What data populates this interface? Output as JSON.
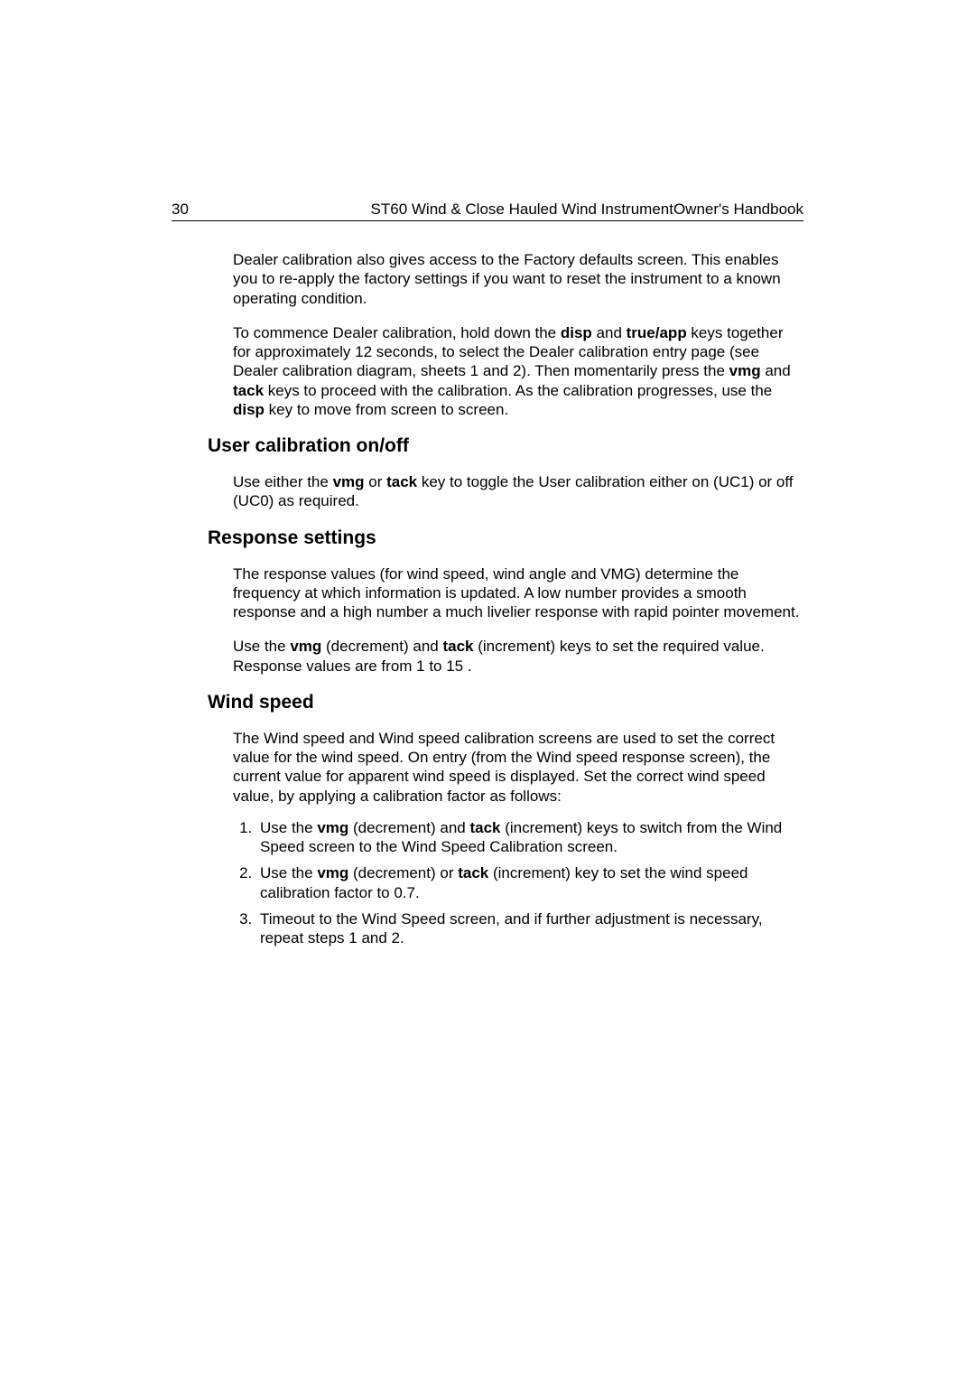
{
  "header": {
    "page_number": "30",
    "title_left": "ST60 Wind & Close Hauled Wind Instrument",
    "title_right": "Owner's Handbook"
  },
  "intro": {
    "p1": "Dealer calibration also gives access to the Factory defaults screen. This enables you to re-apply the factory settings if you want to reset the instrument to a known operating condition.",
    "p2_a": "To commence Dealer calibration, hold down the ",
    "p2_b": "disp",
    "p2_c": " and ",
    "p2_d": "true/app",
    "p2_e": " keys together for approximately 12 seconds, to select the Dealer calibration entry page (see Dealer calibration diagram, sheets 1 and 2). Then momentarily press the ",
    "p2_f": "vmg",
    "p2_g": " and ",
    "p2_h": "tack",
    "p2_i": " keys to proceed with the calibration. As the calibration progresses, use the ",
    "p2_j": "disp",
    "p2_k": " key to move from screen to screen."
  },
  "user_cal": {
    "heading": "User calibration on/off",
    "p_a": "Use either the ",
    "p_b": "vmg",
    "p_c": " or ",
    "p_d": "tack",
    "p_e": " key to toggle the User calibration either on (UC1) or off (UC0) as required."
  },
  "response": {
    "heading": "Response settings",
    "p1": "The response values (for wind speed, wind angle and VMG) determine the frequency at which information is updated. A low number provides a smooth response and a high number a much livelier response with rapid pointer movement.",
    "p2_a": "Use the ",
    "p2_b": "vmg",
    "p2_c": " (decrement) and ",
    "p2_d": "tack",
    "p2_e": " (increment) keys to set the required value. Response values are from  1  to  15 ."
  },
  "wind": {
    "heading": "Wind speed",
    "p1": "The Wind speed and Wind speed calibration screens are used to set the correct value for the wind speed. On entry (from the Wind speed response screen), the current value for apparent wind speed is displayed. Set the correct wind speed value, by applying a calibration factor as follows:",
    "s1_a": "Use the ",
    "s1_b": "vmg",
    "s1_c": " (decrement) and ",
    "s1_d": "tack",
    "s1_e": " (increment) keys to switch from the Wind Speed screen to the Wind Speed Calibration screen.",
    "s2_a": "Use the ",
    "s2_b": "vmg",
    "s2_c": " (decrement) or ",
    "s2_d": "tack",
    "s2_e": " (increment) key to set the wind speed calibration factor to 0.7.",
    "s3": "Timeout to the Wind Speed screen, and if further adjustment is necessary, repeat steps 1 and 2."
  }
}
